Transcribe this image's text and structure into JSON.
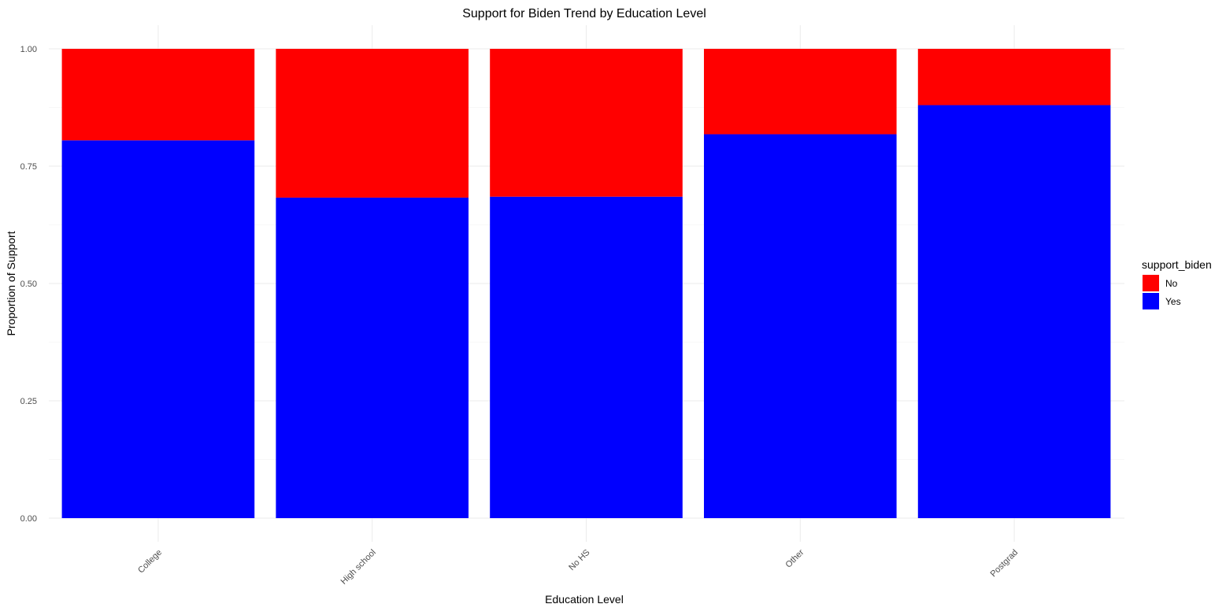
{
  "chart_data": {
    "type": "bar",
    "stacked": true,
    "title": "Support for Biden Trend by Education Level",
    "xlabel": "Education Level",
    "ylabel": "Proportion of Support",
    "categories": [
      "College",
      "High school",
      "No HS",
      "Other",
      "Postgrad"
    ],
    "series": [
      {
        "name": "Yes",
        "color": "#0000ff",
        "values": [
          0.805,
          0.683,
          0.685,
          0.818,
          0.88
        ]
      },
      {
        "name": "No",
        "color": "#ff0000",
        "values": [
          0.195,
          0.317,
          0.315,
          0.182,
          0.12
        ]
      }
    ],
    "ylim": [
      0,
      1
    ],
    "yticks": [
      0.0,
      0.25,
      0.5,
      0.75,
      1.0
    ],
    "ytick_labels": [
      "0.00",
      "0.25",
      "0.50",
      "0.75",
      "1.00"
    ],
    "grid": true,
    "legend": {
      "title": "support_biden",
      "position": "right",
      "entries": [
        {
          "label": "No",
          "color": "#ff0000"
        },
        {
          "label": "Yes",
          "color": "#0000ff"
        }
      ]
    }
  }
}
